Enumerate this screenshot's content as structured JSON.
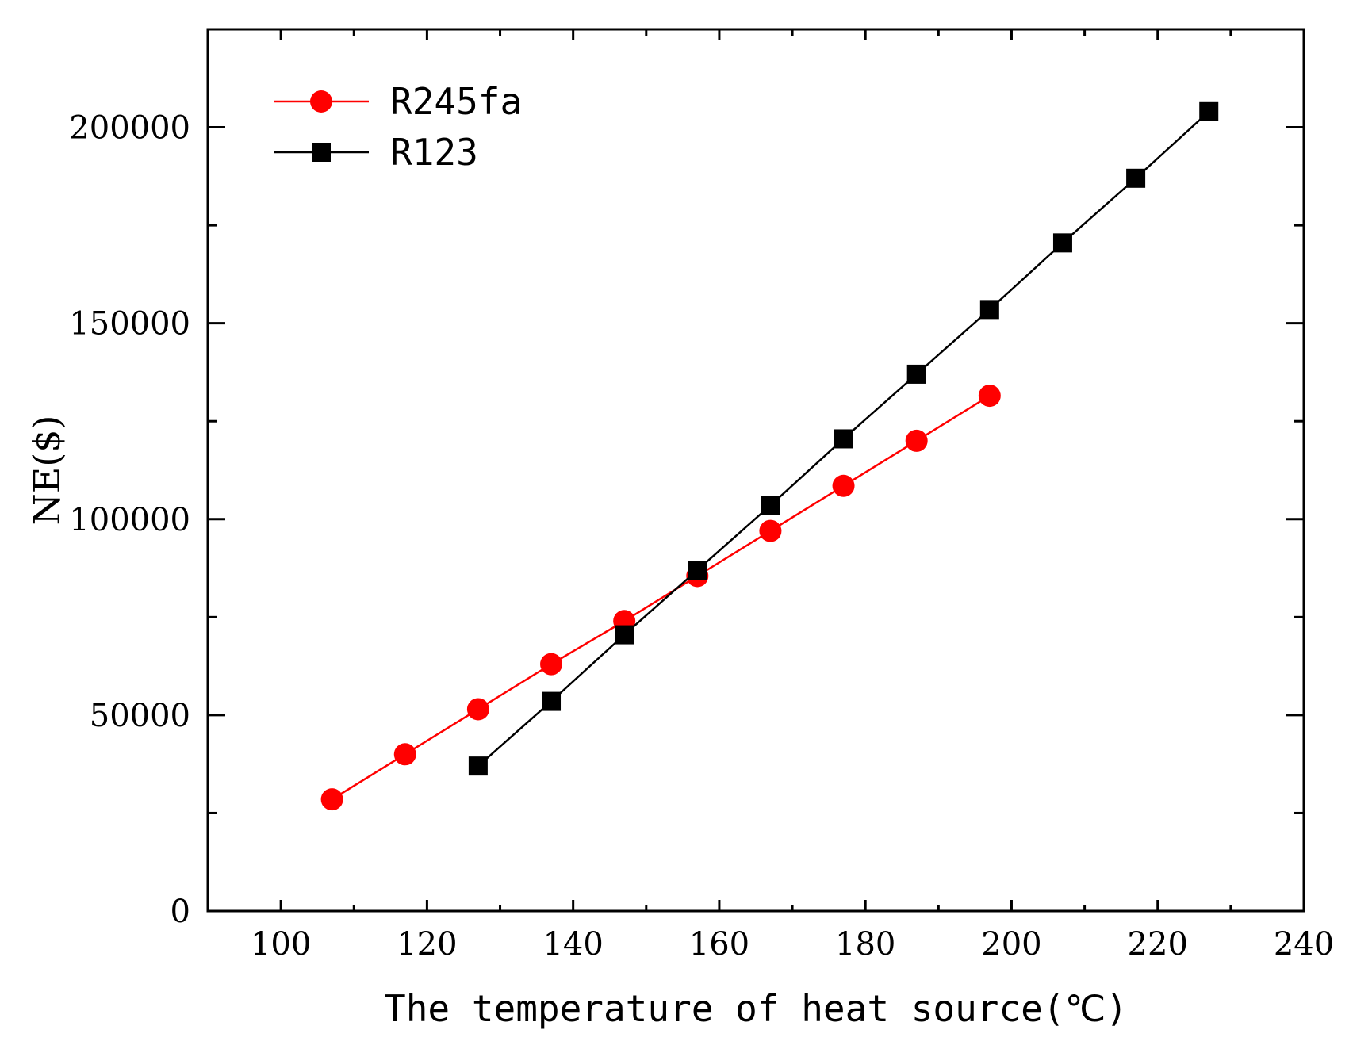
{
  "chart_data": {
    "type": "line",
    "title": "",
    "xlabel": "The temperature of heat source(℃)",
    "ylabel": "NE($)",
    "xlim": [
      90,
      240
    ],
    "ylim": [
      0,
      225000
    ],
    "xticks": [
      100,
      120,
      140,
      160,
      180,
      200,
      220,
      240
    ],
    "yticks": [
      0,
      50000,
      100000,
      150000,
      200000
    ],
    "xtick_labels": [
      "100",
      "120",
      "140",
      "160",
      "180",
      "200",
      "220",
      "240"
    ],
    "ytick_labels": [
      "0",
      "50000",
      "100000",
      "150000",
      "200000"
    ],
    "legend_position": "top-left",
    "series": [
      {
        "name": "R245fa",
        "color": "#ff0000",
        "marker": "circle",
        "x": [
          107,
          117,
          127,
          137,
          147,
          157,
          167,
          177,
          187,
          197
        ],
        "y": [
          28500,
          40000,
          51500,
          63000,
          74000,
          85500,
          97000,
          108500,
          120000,
          131500
        ]
      },
      {
        "name": "R123",
        "color": "#000000",
        "marker": "square",
        "x": [
          127,
          137,
          147,
          157,
          167,
          177,
          187,
          197,
          207,
          217,
          227
        ],
        "y": [
          37000,
          53500,
          70500,
          87000,
          103500,
          120500,
          137000,
          153500,
          170500,
          187000,
          204000
        ]
      }
    ]
  }
}
